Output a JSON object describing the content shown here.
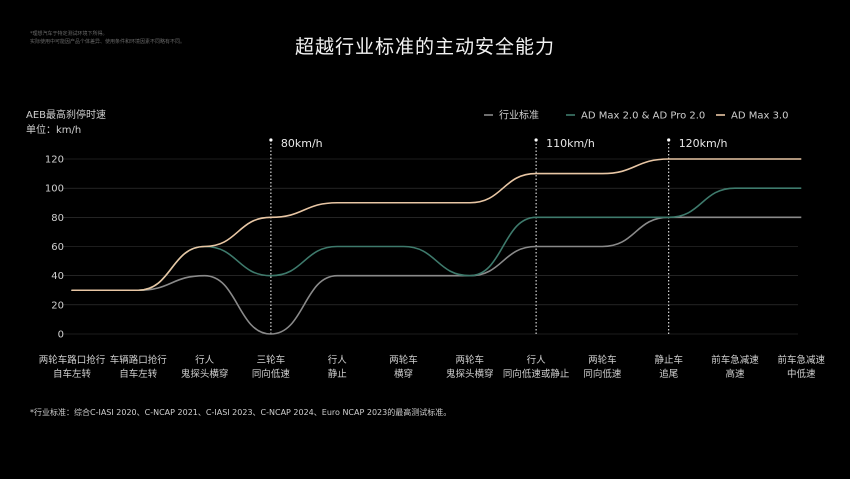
{
  "disclaimer": {
    "line1": "*理想汽车于特定测试环境下所得。",
    "line2": "实际使用中可能因产品个体差异、使用条件和环境因素不同略有不同。"
  },
  "title": "超越行业标准的主动安全能力",
  "ylabel_line1": "AEB最高刹停时速",
  "ylabel_line2": "单位：km/h",
  "footnote": "*行业标准：综合C-IASI 2020、C-NCAP 2021、C-IASI 2023、C-NCAP 2024、Euro NCAP 2023的最高测试标准。",
  "colors": {
    "industry": "#8a8a8a",
    "admax2": "#3e7a6c",
    "admax3": "#e8c6a4",
    "grid": "#3a3a3a",
    "text": "#cfcfcf"
  },
  "chart_data": {
    "type": "line",
    "categories": [
      [
        "两轮车路口抢行",
        "自车左转"
      ],
      [
        "车辆路口抢行",
        "自车左转"
      ],
      [
        "行人",
        "鬼探头横穿"
      ],
      [
        "三轮车",
        "同向低速"
      ],
      [
        "行人",
        "静止"
      ],
      [
        "两轮车",
        "横穿"
      ],
      [
        "两轮车",
        "鬼探头横穿"
      ],
      [
        "行人",
        "同向低速或静止"
      ],
      [
        "两轮车",
        "同向低速"
      ],
      [
        "静止车",
        "追尾"
      ],
      [
        "前车急减速",
        "高速"
      ],
      [
        "前车急减速",
        "中低速"
      ]
    ],
    "yticks": [
      0,
      20,
      40,
      60,
      80,
      100,
      120
    ],
    "ylim": [
      0,
      120
    ],
    "series": [
      {
        "name": "行业标准",
        "color_key": "industry",
        "values": [
          30,
          30,
          40,
          0,
          40,
          40,
          40,
          60,
          60,
          80,
          80,
          80
        ]
      },
      {
        "name": "AD Max 2.0 & AD Pro 2.0",
        "color_key": "admax2",
        "values": [
          30,
          30,
          60,
          40,
          60,
          60,
          40,
          80,
          80,
          80,
          100,
          100
        ]
      },
      {
        "name": "AD Max 3.0",
        "color_key": "admax3",
        "values": [
          30,
          30,
          60,
          80,
          90,
          90,
          90,
          110,
          110,
          120,
          120,
          120
        ]
      }
    ],
    "annotations": [
      {
        "category_index": 3,
        "label": "80km/h",
        "value": 80
      },
      {
        "category_index": 7,
        "label": "110km/h",
        "value": 110
      },
      {
        "category_index": 9,
        "label": "120km/h",
        "value": 120
      }
    ],
    "legend_position": "top-right",
    "grid": true
  }
}
